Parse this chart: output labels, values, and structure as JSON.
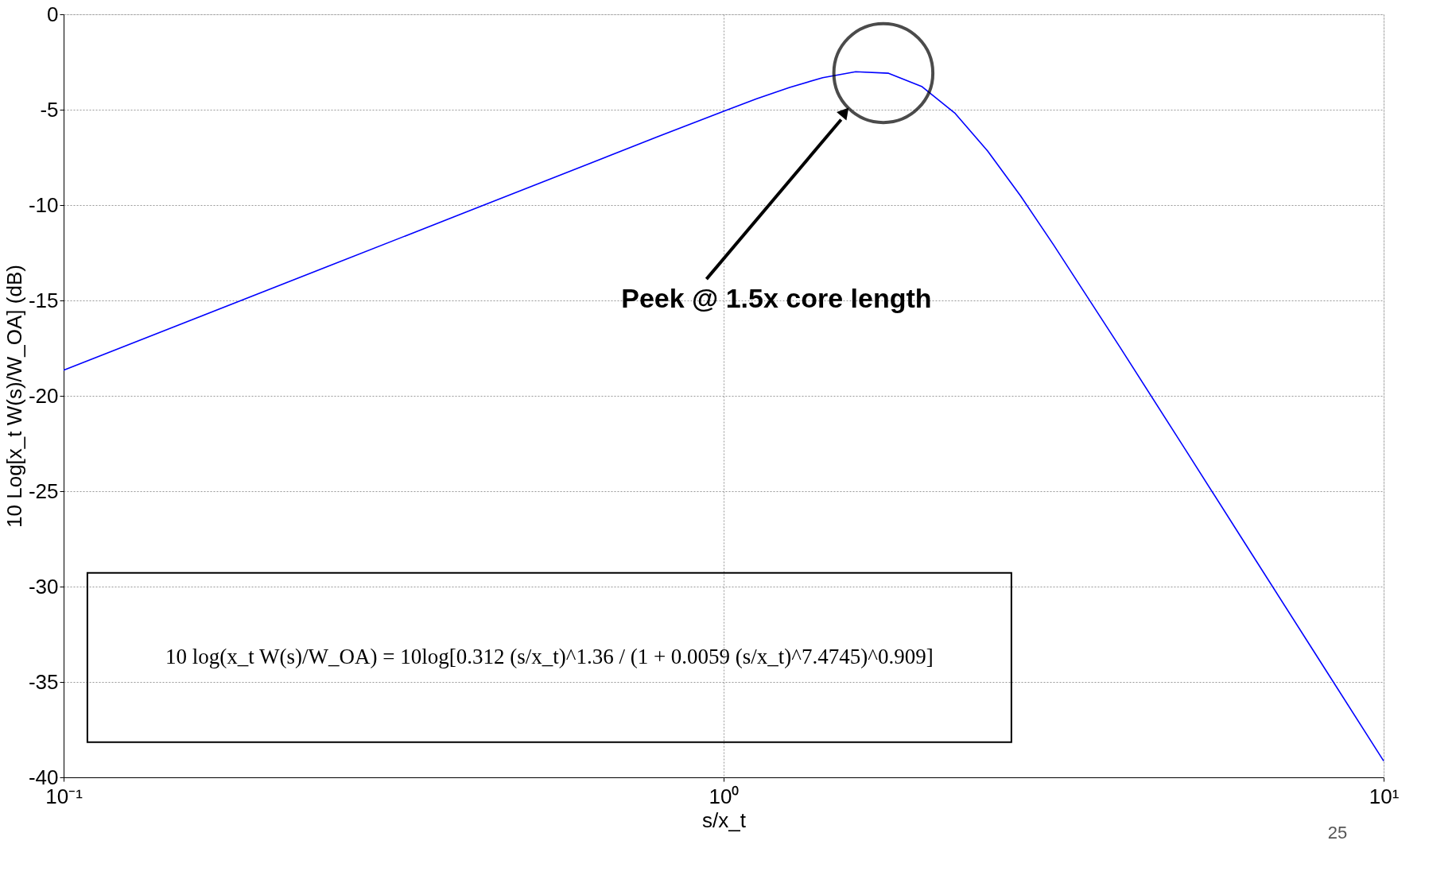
{
  "chart_data": {
    "type": "line",
    "xlabel": "s/x_t",
    "ylabel": "10 Log[x_t W(s)/W_OA] (dB)",
    "x": [
      0.1,
      0.1585,
      0.2512,
      0.3981,
      0.631,
      0.7943,
      1,
      1.122,
      1.259,
      1.413,
      1.585,
      1.778,
      1.995,
      2.239,
      2.512,
      2.818,
      3.162,
      3.981,
      5.012,
      6.31,
      7.943,
      10
    ],
    "series": [
      {
        "color": "#0000ff",
        "values": [
          -18.66,
          -15.94,
          -13.22,
          -10.5,
          -7.78,
          -6.42,
          -5.08,
          -4.43,
          -3.83,
          -3.32,
          -3.01,
          -3.09,
          -3.78,
          -5.17,
          -7.17,
          -9.52,
          -12.09,
          -17.42,
          -22.84,
          -28.28,
          -33.71,
          -39.14
        ]
      }
    ],
    "log": "x",
    "xlim": [
      0.1,
      10
    ],
    "ylim": [
      -40,
      0
    ],
    "xticks": [
      {
        "value": 0.1,
        "label": "10⁻¹"
      },
      {
        "value": 1,
        "label": "10⁰"
      },
      {
        "value": 10,
        "label": "10¹"
      }
    ],
    "yticks": [
      -40,
      -35,
      -30,
      -25,
      -20,
      -15,
      -10,
      -5,
      0
    ],
    "grid": true,
    "line_style": "solid",
    "marker": "none",
    "annotations": [
      "Peek @ 1.5x core length",
      "10 log(x_t W(s)/W_OA) = 10log[0.312 (s/x_t)^1.36 / (1 + 0.0059 (s/x_t)^7.4745)^0.909]",
      "25"
    ]
  }
}
